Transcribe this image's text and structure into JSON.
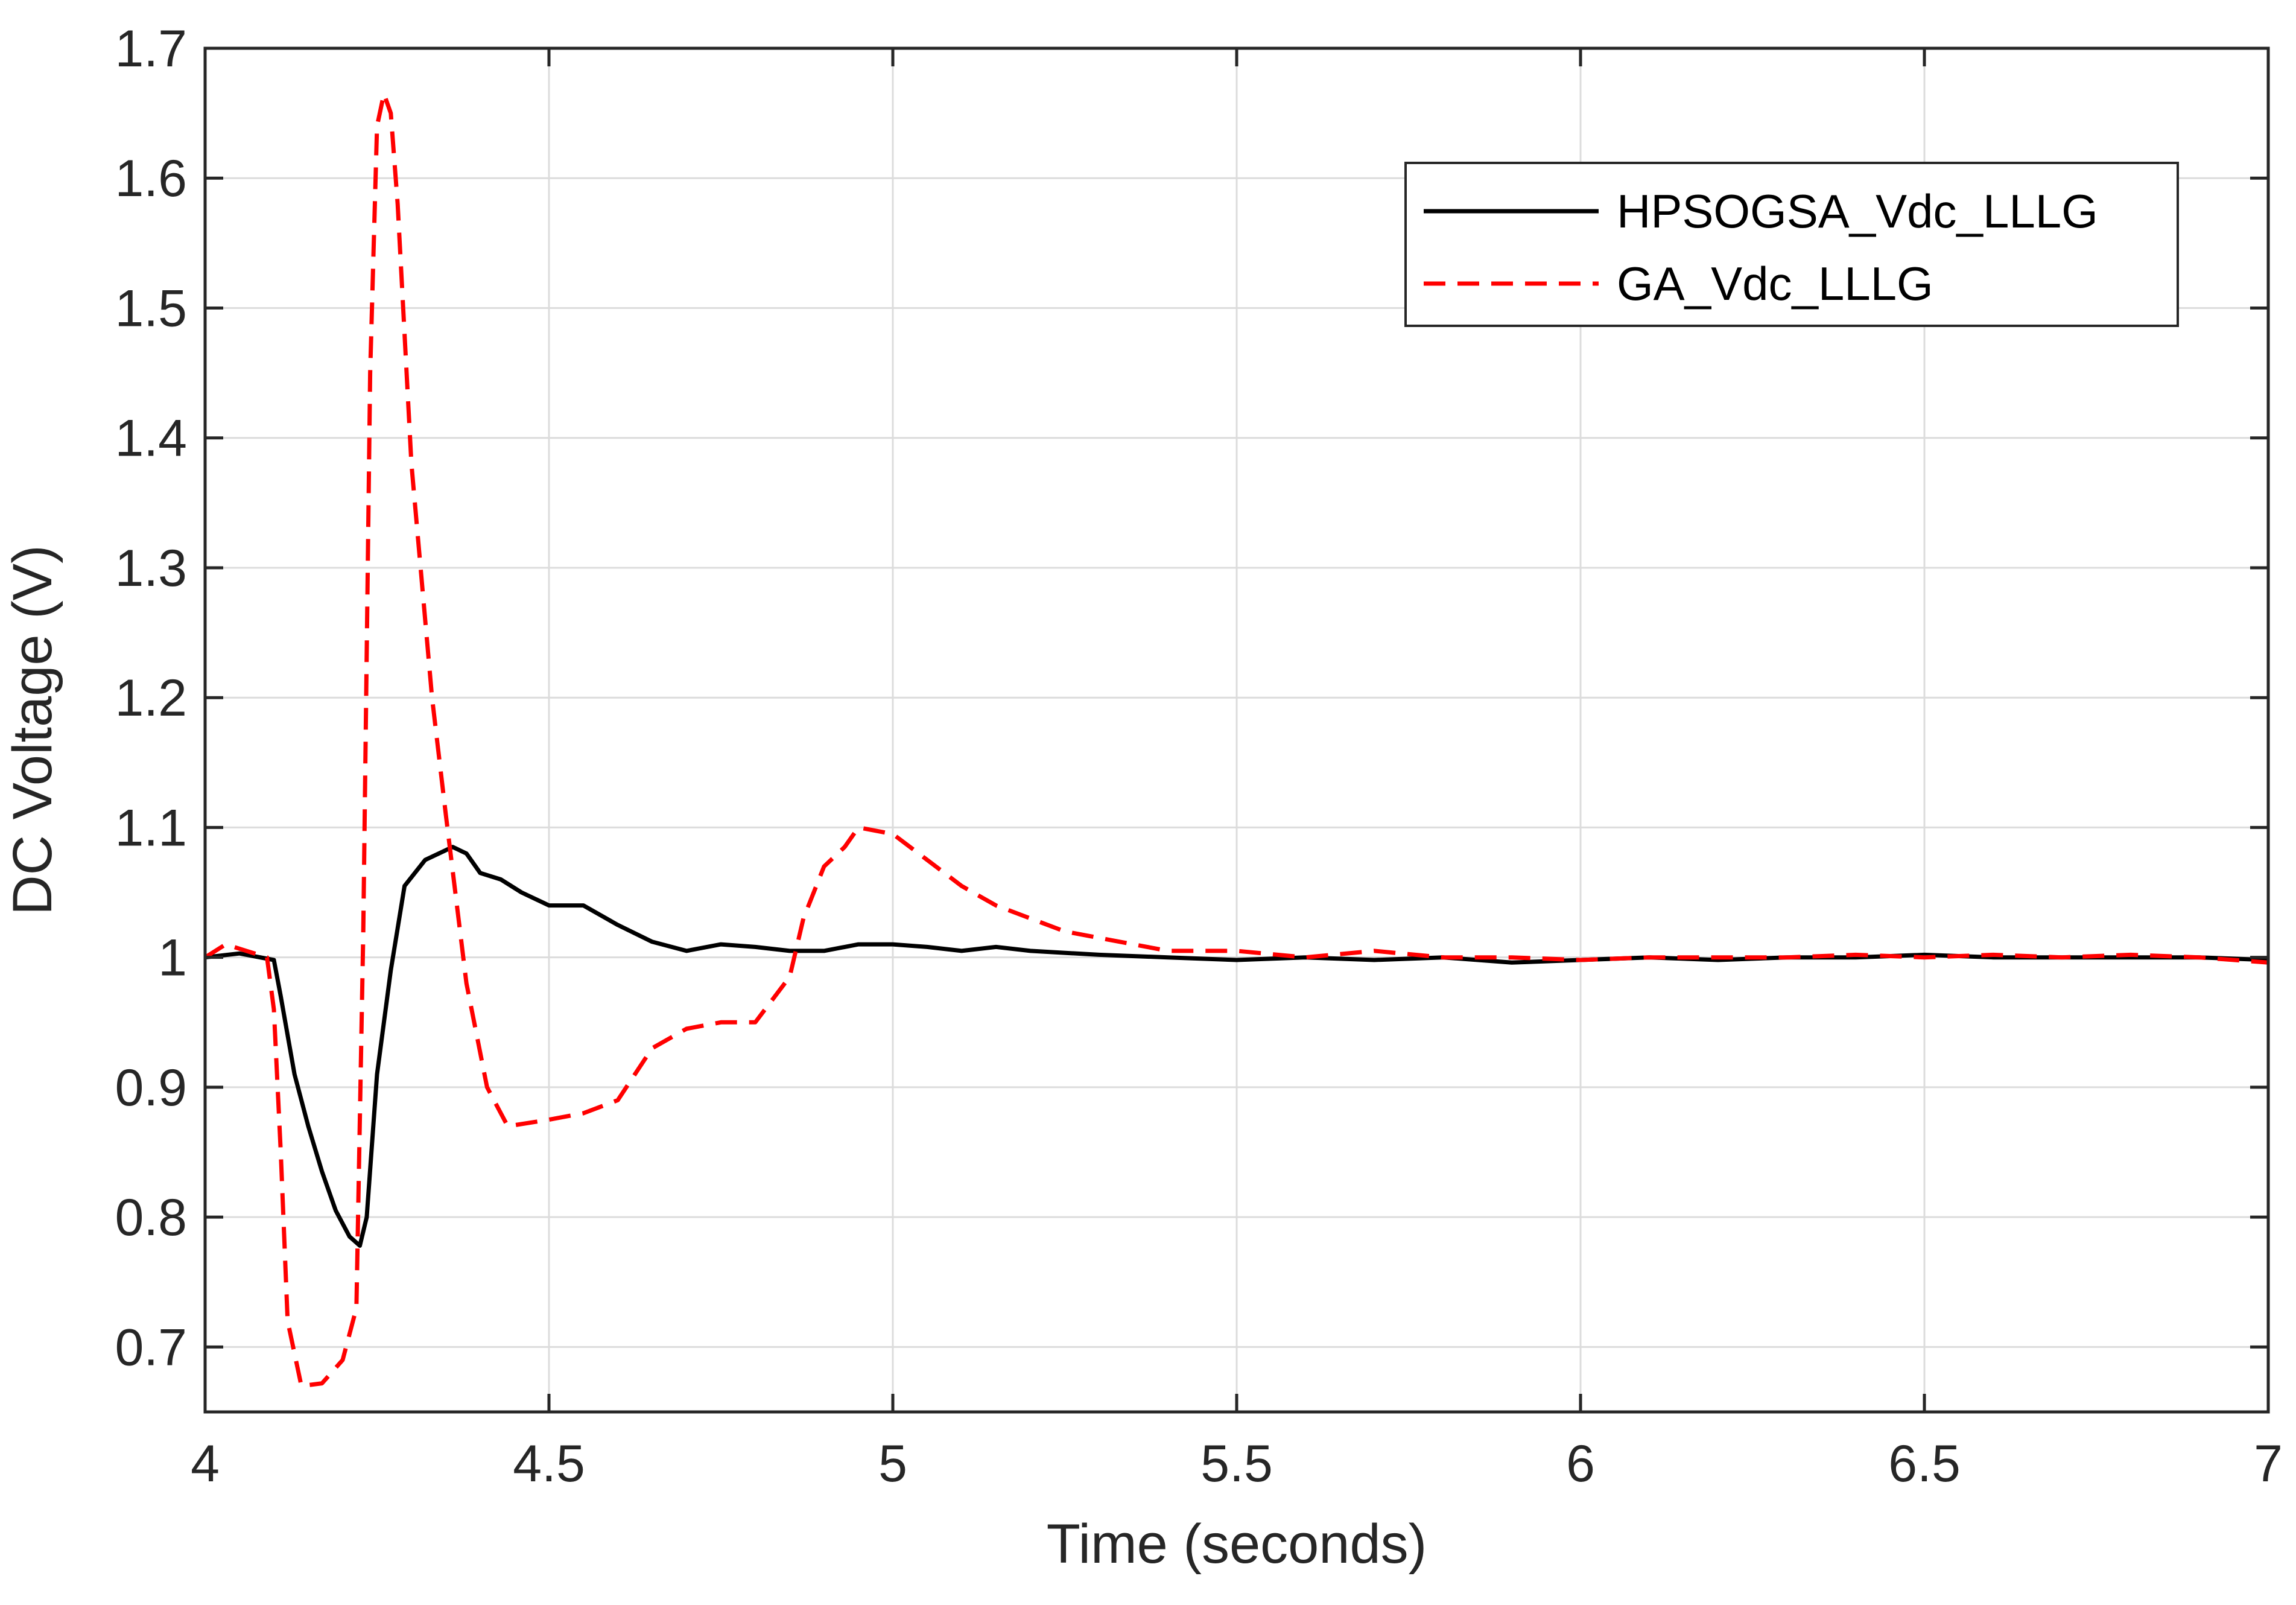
{
  "chart_data": {
    "type": "line",
    "title": "",
    "xlabel": "Time (seconds)",
    "ylabel": "DC Voltage (V)",
    "xlim": [
      4,
      7
    ],
    "ylim": [
      0.65,
      1.7
    ],
    "xticks": [
      4,
      4.5,
      5,
      5.5,
      6,
      6.5,
      7
    ],
    "xtick_labels": [
      "4",
      "4.5",
      "5",
      "5.5",
      "6",
      "6.5",
      "7"
    ],
    "yticks": [
      0.7,
      0.8,
      0.9,
      1,
      1.1,
      1.2,
      1.3,
      1.4,
      1.5,
      1.6,
      1.7
    ],
    "ytick_labels": [
      "0.7",
      "0.8",
      "0.9",
      "1",
      "1.1",
      "1.2",
      "1.3",
      "1.4",
      "1.5",
      "1.6",
      "1.7"
    ],
    "grid": true,
    "legend_position": "top-right",
    "series": [
      {
        "name": "HPSOGSA_Vdc_LLLG",
        "color": "#000000",
        "style": "solid",
        "x": [
          4.0,
          4.05,
          4.1,
          4.11,
          4.13,
          4.15,
          4.17,
          4.19,
          4.21,
          4.225,
          4.235,
          4.25,
          4.27,
          4.29,
          4.32,
          4.36,
          4.38,
          4.4,
          4.43,
          4.46,
          4.5,
          4.55,
          4.6,
          4.65,
          4.7,
          4.75,
          4.8,
          4.85,
          4.9,
          4.95,
          5.0,
          5.05,
          5.1,
          5.15,
          5.2,
          5.3,
          5.4,
          5.5,
          5.6,
          5.7,
          5.8,
          5.9,
          6.0,
          6.1,
          6.2,
          6.3,
          6.4,
          6.5,
          6.6,
          6.7,
          6.8,
          6.9,
          7.0
        ],
        "y": [
          1.0,
          1.003,
          0.998,
          0.97,
          0.91,
          0.87,
          0.835,
          0.805,
          0.785,
          0.778,
          0.8,
          0.91,
          0.99,
          1.055,
          1.075,
          1.085,
          1.08,
          1.065,
          1.06,
          1.05,
          1.04,
          1.04,
          1.025,
          1.012,
          1.005,
          1.01,
          1.008,
          1.005,
          1.005,
          1.01,
          1.01,
          1.008,
          1.005,
          1.008,
          1.005,
          1.002,
          1.0,
          0.998,
          1.0,
          0.998,
          1.0,
          0.996,
          0.998,
          1.0,
          0.998,
          1.0,
          1.0,
          1.002,
          1.0,
          1.0,
          1.0,
          1.0,
          0.998
        ]
      },
      {
        "name": "GA_Vdc_LLLG",
        "color": "#ff0000",
        "style": "dashed",
        "x": [
          4.0,
          4.03,
          4.06,
          4.09,
          4.1,
          4.11,
          4.12,
          4.14,
          4.17,
          4.2,
          4.22,
          4.23,
          4.24,
          4.25,
          4.26,
          4.27,
          4.28,
          4.3,
          4.33,
          4.35,
          4.38,
          4.41,
          4.44,
          4.5,
          4.55,
          4.6,
          4.65,
          4.7,
          4.75,
          4.8,
          4.85,
          4.87,
          4.9,
          4.93,
          4.95,
          5.0,
          5.05,
          5.1,
          5.15,
          5.2,
          5.25,
          5.3,
          5.35,
          5.4,
          5.5,
          5.6,
          5.7,
          5.8,
          5.9,
          6.0,
          6.1,
          6.2,
          6.3,
          6.4,
          6.5,
          6.6,
          6.7,
          6.8,
          6.9,
          7.0
        ],
        "y": [
          1.0,
          1.01,
          1.005,
          1.0,
          0.96,
          0.85,
          0.72,
          0.67,
          0.672,
          0.69,
          0.73,
          1.02,
          1.45,
          1.64,
          1.665,
          1.65,
          1.58,
          1.38,
          1.2,
          1.11,
          0.98,
          0.9,
          0.87,
          0.875,
          0.88,
          0.89,
          0.93,
          0.945,
          0.95,
          0.95,
          0.985,
          1.03,
          1.07,
          1.085,
          1.1,
          1.095,
          1.075,
          1.055,
          1.04,
          1.03,
          1.02,
          1.015,
          1.01,
          1.005,
          1.005,
          1.0,
          1.005,
          1.0,
          1.0,
          0.998,
          1.0,
          1.0,
          1.0,
          1.002,
          1.0,
          1.002,
          1.0,
          1.002,
          1.0,
          0.996
        ]
      }
    ]
  }
}
